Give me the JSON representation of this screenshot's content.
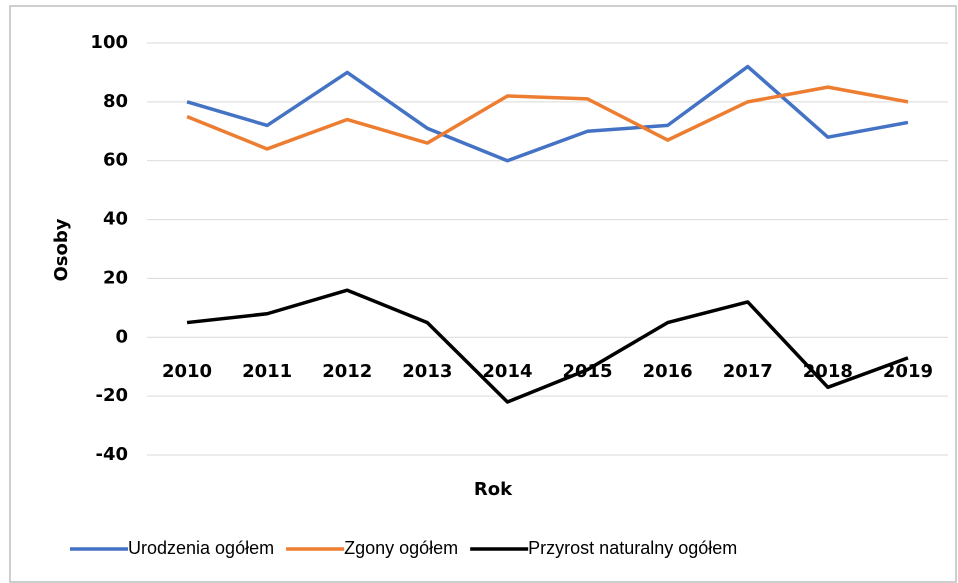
{
  "chart_data": {
    "type": "line",
    "x_label": "Rok",
    "y_label": "Osoby",
    "categories": [
      "2010",
      "2011",
      "2012",
      "2013",
      "2014",
      "2015",
      "2016",
      "2017",
      "2018",
      "2019"
    ],
    "series": [
      {
        "name": "Urodzenia ogółem",
        "color": "#4472c4",
        "values": [
          80,
          72,
          90,
          71,
          60,
          70,
          72,
          92,
          68,
          73
        ]
      },
      {
        "name": "Zgony ogółem",
        "color": "#ed7d31",
        "values": [
          75,
          64,
          74,
          66,
          82,
          81,
          67,
          80,
          85,
          80
        ]
      },
      {
        "name": "Przyrost naturalny ogółem",
        "color": "#000000",
        "values": [
          5,
          8,
          16,
          5,
          -22,
          -11,
          5,
          12,
          -17,
          -7
        ]
      }
    ],
    "ylim": [
      -40,
      100
    ],
    "yticks": [
      -40,
      -20,
      0,
      20,
      40,
      60,
      80,
      100
    ],
    "grid": true,
    "legend": "bottom"
  }
}
